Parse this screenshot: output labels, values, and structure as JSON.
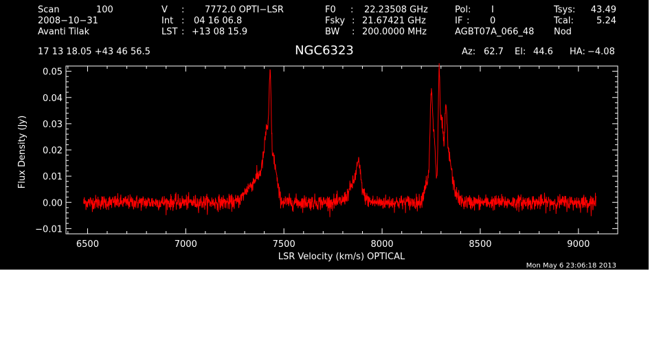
{
  "header": {
    "row1": {
      "scan_label": "Scan",
      "scan_value": "100",
      "v_label": "V",
      "v_sep": ":",
      "v_value": "7772.0 OPTI−LSR",
      "f0_label": "F0",
      "f0_sep": ":",
      "f0_value": "22.23508 GHz",
      "pol_label": "Pol:",
      "pol_value": "I",
      "tsys_label": "Tsys:",
      "tsys_value": "43.49"
    },
    "row2": {
      "date": "2008−10−31",
      "int_label": "Int",
      "int_sep": ":",
      "int_value": "04 16 06.8",
      "fsky_label": "Fsky",
      "fsky_sep": ":",
      "fsky_value": "21.67421 GHz",
      "if_label": "IF",
      "if_sep": ":",
      "if_value": "0",
      "tcal_label": "Tcal:",
      "tcal_value": "5.24"
    },
    "row3": {
      "observer": "Avanti Tilak",
      "lst_label": "LST",
      "lst_sep": ":",
      "lst_value": "+13 08 15.9",
      "bw_label": "BW",
      "bw_sep": ":",
      "bw_value": "200.0000 MHz",
      "project": "AGBT07A_066_48",
      "proc": "Nod"
    },
    "row4": {
      "coords": "17 13 18.05  +43 46 56.5",
      "source": "NGC6323",
      "az_label": "Az:",
      "az_value": "62.7",
      "el_label": "El:",
      "el_value": "44.6",
      "ha_label": "HA:",
      "ha_value": "−4.08"
    },
    "timestamp": "Mon May  6 23:06:18 2013"
  },
  "chart_data": {
    "type": "line",
    "xlabel": "LSR Velocity (km/s) OPTICAL",
    "ylabel": "Flux Density (Jy)",
    "xlim": [
      6390,
      9200
    ],
    "ylim": [
      -0.012,
      0.052
    ],
    "xticks": [
      6500,
      7000,
      7500,
      8000,
      8500,
      9000
    ],
    "xtick_labels": [
      "6500",
      "7000",
      "7500",
      "8000",
      "8500",
      "9000"
    ],
    "yticks": [
      -0.01,
      0.0,
      0.01,
      0.02,
      0.03,
      0.04,
      0.05
    ],
    "ytick_labels": [
      "−0.01",
      "0.00",
      "0.01",
      "0.02",
      "0.03",
      "0.04",
      "0.05"
    ],
    "line_color": "#ff0000",
    "axis_color": "#ffffff",
    "background": "#000000",
    "grid": false,
    "x_range": [
      6480,
      9090
    ],
    "noise_rms": 0.0014,
    "features": [
      {
        "center": 7320,
        "peak": 0.005,
        "width": 25
      },
      {
        "center": 7365,
        "peak": 0.008,
        "width": 20
      },
      {
        "center": 7400,
        "peak": 0.013,
        "width": 15
      },
      {
        "center": 7415,
        "peak": 0.017,
        "width": 10
      },
      {
        "center": 7430,
        "peak": 0.031,
        "width": 5
      },
      {
        "center": 7440,
        "peak": 0.012,
        "width": 15
      },
      {
        "center": 7455,
        "peak": 0.007,
        "width": 15
      },
      {
        "center": 7865,
        "peak": 0.008,
        "width": 30
      },
      {
        "center": 7880,
        "peak": 0.008,
        "width": 10
      },
      {
        "center": 8230,
        "peak": 0.008,
        "width": 15
      },
      {
        "center": 8250,
        "peak": 0.035,
        "width": 6
      },
      {
        "center": 8265,
        "peak": 0.024,
        "width": 8
      },
      {
        "center": 8290,
        "peak": 0.044,
        "width": 5
      },
      {
        "center": 8305,
        "peak": 0.03,
        "width": 8
      },
      {
        "center": 8325,
        "peak": 0.028,
        "width": 6
      },
      {
        "center": 8340,
        "peak": 0.014,
        "width": 12
      },
      {
        "center": 8360,
        "peak": 0.005,
        "width": 20
      }
    ]
  }
}
